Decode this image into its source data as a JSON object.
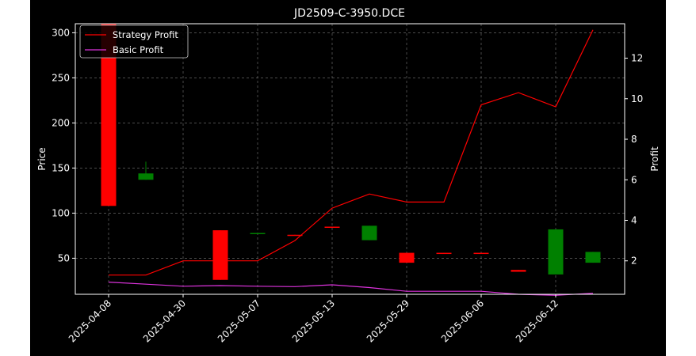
{
  "chart_data": {
    "type": "candlestick+line",
    "title": "JD2509-C-3950.DCE",
    "xlabel": "",
    "ylabel_left": "Price",
    "ylabel_right": "Profit",
    "ylim_left": [
      10,
      310
    ],
    "ylim_right": [
      0.35,
      13.7
    ],
    "yticks_left": [
      50,
      100,
      150,
      200,
      250,
      300
    ],
    "yticks_right": [
      2,
      4,
      6,
      8,
      10,
      12
    ],
    "x_tick_labels": [
      "2025-04-08",
      "2025-04-30",
      "2025-05-07",
      "2025-05-13",
      "2025-05-29",
      "2025-06-06",
      "2025-06-12"
    ],
    "x_tick_positions": [
      0,
      2,
      4,
      6,
      8,
      10,
      12
    ],
    "grid": true,
    "legend_position": "upper-left",
    "colors": {
      "background": "#000000",
      "figure": "#ffffff",
      "axes": "#ffffff",
      "grid": "#808080",
      "up": "#008000",
      "down": "#ff0000",
      "strategy": "#ff0000",
      "basic": "#dd33dd"
    },
    "candles": [
      {
        "i": 0,
        "open": 310,
        "close": 108,
        "high": 310,
        "low": 108
      },
      {
        "i": 1,
        "open": 137,
        "close": 144,
        "high": 157,
        "low": 137
      },
      {
        "i": 3,
        "open": 81,
        "close": 26,
        "high": 81,
        "low": 26
      },
      {
        "i": 4,
        "open": 77,
        "close": 78,
        "high": 78,
        "low": 77
      },
      {
        "i": 5,
        "open": 76,
        "close": 75,
        "high": 76,
        "low": 75
      },
      {
        "i": 6,
        "open": 85,
        "close": 84,
        "high": 85,
        "low": 84
      },
      {
        "i": 7,
        "open": 70,
        "close": 86,
        "high": 86,
        "low": 70
      },
      {
        "i": 8,
        "open": 56,
        "close": 45,
        "high": 56,
        "low": 45
      },
      {
        "i": 9,
        "open": 56,
        "close": 55,
        "high": 56,
        "low": 55
      },
      {
        "i": 10,
        "open": 56,
        "close": 55,
        "high": 56,
        "low": 55
      },
      {
        "i": 11,
        "open": 37,
        "close": 35,
        "high": 37,
        "low": 35
      },
      {
        "i": 12,
        "open": 32,
        "close": 82,
        "high": 82,
        "low": 32
      },
      {
        "i": 13,
        "open": 45,
        "close": 57,
        "high": 57,
        "low": 45
      }
    ],
    "series": [
      {
        "name": "Strategy Profit",
        "color": "#ff0000",
        "x": [
          0,
          1,
          2,
          3,
          4,
          5,
          6,
          7,
          8,
          9,
          10,
          11,
          12,
          13
        ],
        "values": [
          1.3,
          1.3,
          2.0,
          2.0,
          2.0,
          3.0,
          4.6,
          5.3,
          4.9,
          4.9,
          9.7,
          10.3,
          9.6,
          13.4
        ]
      },
      {
        "name": "Basic Profit",
        "color": "#dd33dd",
        "x": [
          0,
          1,
          2,
          3,
          4,
          5,
          6,
          7,
          8,
          9,
          10,
          11,
          12,
          13
        ],
        "values": [
          0.95,
          0.85,
          0.75,
          0.78,
          0.75,
          0.73,
          0.82,
          0.68,
          0.5,
          0.5,
          0.5,
          0.35,
          0.3,
          0.4
        ]
      }
    ]
  }
}
